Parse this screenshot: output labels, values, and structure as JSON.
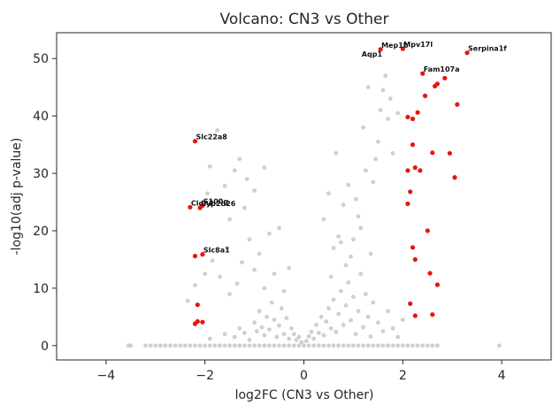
{
  "chart_data": {
    "type": "scatter",
    "title": "Volcano: CN3 vs Other",
    "xlabel": "log2FC (CN3 vs Other)",
    "ylabel": "-log10(adj p-value)",
    "xlim": [
      -5,
      5
    ],
    "ylim": [
      -2.5,
      54.5
    ],
    "xticks": [
      -4,
      -2,
      0,
      2,
      4
    ],
    "xtick_labels": [
      "−4",
      "−2",
      "0",
      "2",
      "4"
    ],
    "yticks": [
      0,
      10,
      20,
      30,
      40,
      50
    ],
    "ytick_labels": [
      "0",
      "10",
      "20",
      "30",
      "40",
      "50"
    ],
    "grid": false,
    "colors": {
      "background": "#cfcfcf",
      "highlight": "#e8140f",
      "axis": "#262626"
    },
    "series": [
      {
        "role": "background",
        "points": [
          [
            -3.55,
            0
          ],
          [
            -3.5,
            0
          ],
          [
            -3.2,
            0
          ],
          [
            -3.1,
            0
          ],
          [
            -3.0,
            0
          ],
          [
            -2.9,
            0
          ],
          [
            -2.8,
            0
          ],
          [
            -2.7,
            0
          ],
          [
            -2.6,
            0
          ],
          [
            -2.5,
            0
          ],
          [
            -2.4,
            0
          ],
          [
            -2.3,
            0
          ],
          [
            -2.2,
            0
          ],
          [
            -2.1,
            0
          ],
          [
            -2.0,
            0
          ],
          [
            -1.9,
            0
          ],
          [
            -1.8,
            0
          ],
          [
            -1.7,
            0
          ],
          [
            -1.6,
            0
          ],
          [
            -1.5,
            0
          ],
          [
            -1.4,
            0
          ],
          [
            -1.3,
            0
          ],
          [
            -1.2,
            0
          ],
          [
            -1.1,
            0
          ],
          [
            -1.0,
            0
          ],
          [
            -0.9,
            0
          ],
          [
            -0.8,
            0
          ],
          [
            -0.7,
            0
          ],
          [
            -0.6,
            0
          ],
          [
            -0.5,
            0
          ],
          [
            -0.4,
            0
          ],
          [
            -0.3,
            0
          ],
          [
            -0.2,
            0
          ],
          [
            -0.1,
            0
          ],
          [
            0.0,
            0
          ],
          [
            0.1,
            0
          ],
          [
            0.2,
            0
          ],
          [
            0.3,
            0
          ],
          [
            0.4,
            0
          ],
          [
            0.5,
            0
          ],
          [
            0.6,
            0
          ],
          [
            0.7,
            0
          ],
          [
            0.8,
            0
          ],
          [
            0.9,
            0
          ],
          [
            1.0,
            0
          ],
          [
            1.1,
            0
          ],
          [
            1.2,
            0
          ],
          [
            1.3,
            0
          ],
          [
            1.4,
            0
          ],
          [
            1.5,
            0
          ],
          [
            1.6,
            0
          ],
          [
            1.7,
            0
          ],
          [
            1.8,
            0
          ],
          [
            1.9,
            0
          ],
          [
            2.0,
            0
          ],
          [
            2.1,
            0
          ],
          [
            2.2,
            0
          ],
          [
            2.3,
            0
          ],
          [
            2.4,
            0
          ],
          [
            2.5,
            0
          ],
          [
            2.6,
            0
          ],
          [
            2.7,
            0
          ],
          [
            3.95,
            0
          ],
          [
            -1.9,
            1.2
          ],
          [
            -1.6,
            2.0
          ],
          [
            -1.4,
            1.5
          ],
          [
            -1.3,
            3.0
          ],
          [
            -1.2,
            2.2
          ],
          [
            -1.1,
            1.0
          ],
          [
            -1.0,
            4.0
          ],
          [
            -0.95,
            2.5
          ],
          [
            -0.9,
            6.0
          ],
          [
            -0.85,
            3.2
          ],
          [
            -0.8,
            1.8
          ],
          [
            -0.75,
            5.0
          ],
          [
            -0.7,
            2.8
          ],
          [
            -0.65,
            7.5
          ],
          [
            -0.6,
            4.5
          ],
          [
            -0.55,
            1.5
          ],
          [
            -0.5,
            3.5
          ],
          [
            -0.45,
            6.5
          ],
          [
            -0.4,
            2.0
          ],
          [
            -0.35,
            4.8
          ],
          [
            -0.3,
            1.2
          ],
          [
            -0.25,
            3.0
          ],
          [
            -0.2,
            2.0
          ],
          [
            -0.15,
            1.0
          ],
          [
            -0.1,
            1.5
          ],
          [
            -0.05,
            0.6
          ],
          [
            0.05,
            0.8
          ],
          [
            0.1,
            1.6
          ],
          [
            0.15,
            2.4
          ],
          [
            0.2,
            1.2
          ],
          [
            0.25,
            3.6
          ],
          [
            0.3,
            2.2
          ],
          [
            0.35,
            5.0
          ],
          [
            0.4,
            1.8
          ],
          [
            0.45,
            4.2
          ],
          [
            0.5,
            6.5
          ],
          [
            0.55,
            3.0
          ],
          [
            0.6,
            8.0
          ],
          [
            0.65,
            2.4
          ],
          [
            0.7,
            5.5
          ],
          [
            0.75,
            9.5
          ],
          [
            0.8,
            3.6
          ],
          [
            0.85,
            7.0
          ],
          [
            0.9,
            11.0
          ],
          [
            0.95,
            4.4
          ],
          [
            1.0,
            8.5
          ],
          [
            1.05,
            2.0
          ],
          [
            1.1,
            6.0
          ],
          [
            1.15,
            12.5
          ],
          [
            1.2,
            3.2
          ],
          [
            1.25,
            9.0
          ],
          [
            1.3,
            5.0
          ],
          [
            1.35,
            1.6
          ],
          [
            1.4,
            7.5
          ],
          [
            1.5,
            4.0
          ],
          [
            1.6,
            2.5
          ],
          [
            1.7,
            6.0
          ],
          [
            1.8,
            3.0
          ],
          [
            1.9,
            1.5
          ],
          [
            2.0,
            4.5
          ],
          [
            -2.35,
            7.8
          ],
          [
            -2.2,
            10.5
          ],
          [
            -2.0,
            12.5
          ],
          [
            -1.85,
            14.8
          ],
          [
            -1.7,
            12.0
          ],
          [
            -1.55,
            17.0
          ],
          [
            -1.5,
            9.0
          ],
          [
            -1.35,
            10.8
          ],
          [
            -1.25,
            14.5
          ],
          [
            -1.1,
            18.5
          ],
          [
            -1.0,
            13.2
          ],
          [
            -0.9,
            16.0
          ],
          [
            -0.8,
            10.0
          ],
          [
            -0.7,
            19.5
          ],
          [
            -0.6,
            12.5
          ],
          [
            -0.5,
            20.5
          ],
          [
            -0.4,
            9.5
          ],
          [
            -0.3,
            13.5
          ],
          [
            -1.95,
            26.5
          ],
          [
            -1.7,
            25.2
          ],
          [
            -1.5,
            22.0
          ],
          [
            -1.4,
            30.5
          ],
          [
            -1.3,
            32.5
          ],
          [
            -1.2,
            24.0
          ],
          [
            -1.15,
            29.0
          ],
          [
            -1.0,
            27.0
          ],
          [
            -0.8,
            31.0
          ],
          [
            -1.9,
            31.2
          ],
          [
            -1.75,
            37.5
          ],
          [
            -1.6,
            27.8
          ],
          [
            0.4,
            22.0
          ],
          [
            0.5,
            26.5
          ],
          [
            0.65,
            33.5
          ],
          [
            0.7,
            19.0
          ],
          [
            0.8,
            24.5
          ],
          [
            0.9,
            28.0
          ],
          [
            1.0,
            18.5
          ],
          [
            1.1,
            22.5
          ],
          [
            1.2,
            38.0
          ],
          [
            1.25,
            30.5
          ],
          [
            1.3,
            45.0
          ],
          [
            1.4,
            28.5
          ],
          [
            1.45,
            32.5
          ],
          [
            1.5,
            35.5
          ],
          [
            1.55,
            41.0
          ],
          [
            1.6,
            44.5
          ],
          [
            1.65,
            47.0
          ],
          [
            1.7,
            39.5
          ],
          [
            1.75,
            43.0
          ],
          [
            1.8,
            33.5
          ],
          [
            1.9,
            40.5
          ],
          [
            0.95,
            15.5
          ],
          [
            1.05,
            25.5
          ],
          [
            0.6,
            17.0
          ],
          [
            1.35,
            16.0
          ],
          [
            1.15,
            20.5
          ],
          [
            0.85,
            14.0
          ],
          [
            0.55,
            12.0
          ],
          [
            0.75,
            18.0
          ]
        ]
      },
      {
        "role": "highlighted",
        "points": [
          [
            -2.2,
            35.6
          ],
          [
            -2.3,
            24.1
          ],
          [
            -2.1,
            24.0
          ],
          [
            -2.05,
            24.4
          ],
          [
            -2.2,
            15.6
          ],
          [
            -2.05,
            15.9
          ],
          [
            -2.15,
            7.1
          ],
          [
            -2.15,
            4.2
          ],
          [
            -2.2,
            3.8
          ],
          [
            -2.05,
            4.1
          ],
          [
            1.55,
            51.6
          ],
          [
            2.0,
            51.7
          ],
          [
            3.3,
            51.0
          ],
          [
            2.4,
            47.4
          ],
          [
            2.85,
            46.6
          ],
          [
            2.65,
            45.2
          ],
          [
            2.7,
            45.6
          ],
          [
            2.45,
            43.5
          ],
          [
            2.3,
            40.6
          ],
          [
            2.1,
            39.8
          ],
          [
            2.2,
            39.5
          ],
          [
            3.1,
            42.0
          ],
          [
            2.1,
            30.5
          ],
          [
            2.25,
            31.0
          ],
          [
            2.35,
            30.5
          ],
          [
            2.2,
            35.0
          ],
          [
            2.6,
            33.6
          ],
          [
            2.95,
            33.5
          ],
          [
            3.05,
            29.3
          ],
          [
            2.15,
            26.8
          ],
          [
            2.1,
            24.7
          ],
          [
            2.5,
            20.0
          ],
          [
            2.2,
            17.1
          ],
          [
            2.25,
            15.0
          ],
          [
            2.55,
            12.6
          ],
          [
            2.7,
            10.6
          ],
          [
            2.15,
            7.3
          ],
          [
            2.6,
            5.4
          ],
          [
            2.25,
            5.2
          ]
        ]
      }
    ],
    "annotations": [
      {
        "text": "Serpina1f",
        "x": 3.3,
        "y": 51.0
      },
      {
        "text": "Mep1b",
        "x": 1.55,
        "y": 51.6
      },
      {
        "text": "Mpv17l",
        "x": 2.0,
        "y": 51.7
      },
      {
        "text": "Aqp1",
        "x": 1.15,
        "y": 50.0
      },
      {
        "text": "Fam107a",
        "x": 2.4,
        "y": 47.4
      },
      {
        "text": "Slc22a8",
        "x": -2.2,
        "y": 35.6
      },
      {
        "text": "S100g",
        "x": -2.05,
        "y": 24.4
      },
      {
        "text": "Cldn2",
        "x": -2.3,
        "y": 24.1
      },
      {
        "text": "Cyp2d26",
        "x": -2.1,
        "y": 24.0
      },
      {
        "text": "Slc8a1",
        "x": -2.05,
        "y": 15.9
      }
    ]
  }
}
